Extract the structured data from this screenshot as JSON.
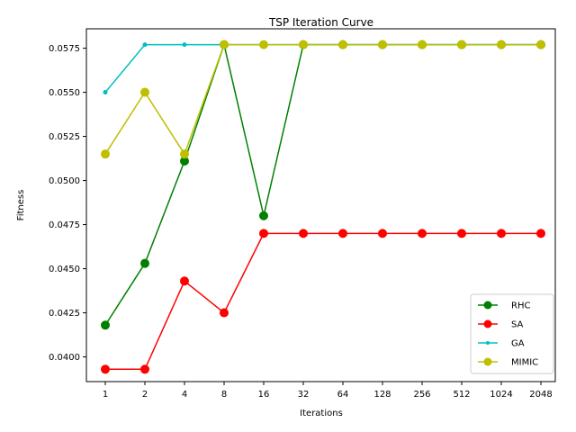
{
  "chart_data": {
    "type": "line",
    "title": "TSP Iteration Curve",
    "xlabel": "Iterations",
    "ylabel": "Fitness",
    "categories": [
      "1",
      "2",
      "4",
      "8",
      "16",
      "32",
      "64",
      "128",
      "256",
      "512",
      "1024",
      "2048"
    ],
    "yticks": [
      0.04,
      0.0425,
      0.045,
      0.0475,
      0.05,
      0.0525,
      0.055,
      0.0575
    ],
    "ytick_labels": [
      "0.0400",
      "0.0425",
      "0.0450",
      "0.0475",
      "0.0500",
      "0.0525",
      "0.0550",
      "0.0575"
    ],
    "ylim": [
      0.0386,
      0.0586
    ],
    "grid": false,
    "legend": "lower-right",
    "series": [
      {
        "name": "RHC",
        "color": "#008000",
        "marker": "circle-large",
        "values": [
          0.0418,
          0.0453,
          0.0511,
          0.0577,
          0.048,
          0.0577,
          0.0577,
          0.0577,
          0.0577,
          0.0577,
          0.0577,
          0.0577
        ]
      },
      {
        "name": "SA",
        "color": "#ff0000",
        "marker": "circle-large",
        "values": [
          0.0393,
          0.0393,
          0.0443,
          0.0425,
          0.047,
          0.047,
          0.047,
          0.047,
          0.047,
          0.047,
          0.047,
          0.047
        ]
      },
      {
        "name": "GA",
        "color": "#00bfbf",
        "marker": "circle-small",
        "values": [
          0.055,
          0.0577,
          0.0577,
          0.0577,
          0.0577,
          0.0577,
          0.0577,
          0.0577,
          0.0577,
          0.0577,
          0.0577,
          0.0577
        ]
      },
      {
        "name": "MIMIC",
        "color": "#bfbf00",
        "marker": "circle-large",
        "values": [
          0.0515,
          0.055,
          0.0515,
          0.0577,
          0.0577,
          0.0577,
          0.0577,
          0.0577,
          0.0577,
          0.0577,
          0.0577,
          0.0577
        ]
      }
    ]
  }
}
